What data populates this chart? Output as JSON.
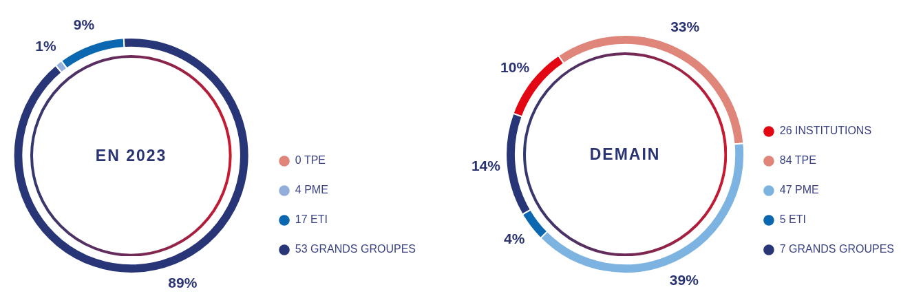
{
  "chart_data": [
    {
      "type": "donut",
      "title": "EN 2023",
      "categories": [
        "0 TPE",
        "4 PME",
        "17 ETI",
        "53 GRANDS GROUPES"
      ],
      "values": [
        0,
        1,
        9,
        89
      ],
      "value_labels": [
        null,
        "1%",
        "9%",
        "89%"
      ],
      "colors": [
        "#e0857a",
        "#94aedb",
        "#0b67b0",
        "#283577"
      ],
      "legend": "right"
    },
    {
      "type": "donut",
      "title": "DEMAIN",
      "categories": [
        "26 INSTITUTIONS",
        "84 TPE",
        "47 PME",
        "5 ETI",
        "7 GRANDS GROUPES"
      ],
      "values": [
        10,
        33,
        39,
        4,
        14
      ],
      "value_labels": [
        "10%",
        "33%",
        "39%",
        "4%",
        "14%"
      ],
      "colors": [
        "#e30613",
        "#e0857a",
        "#7db3e1",
        "#0b67b0",
        "#283577"
      ],
      "legend": "right"
    }
  ]
}
